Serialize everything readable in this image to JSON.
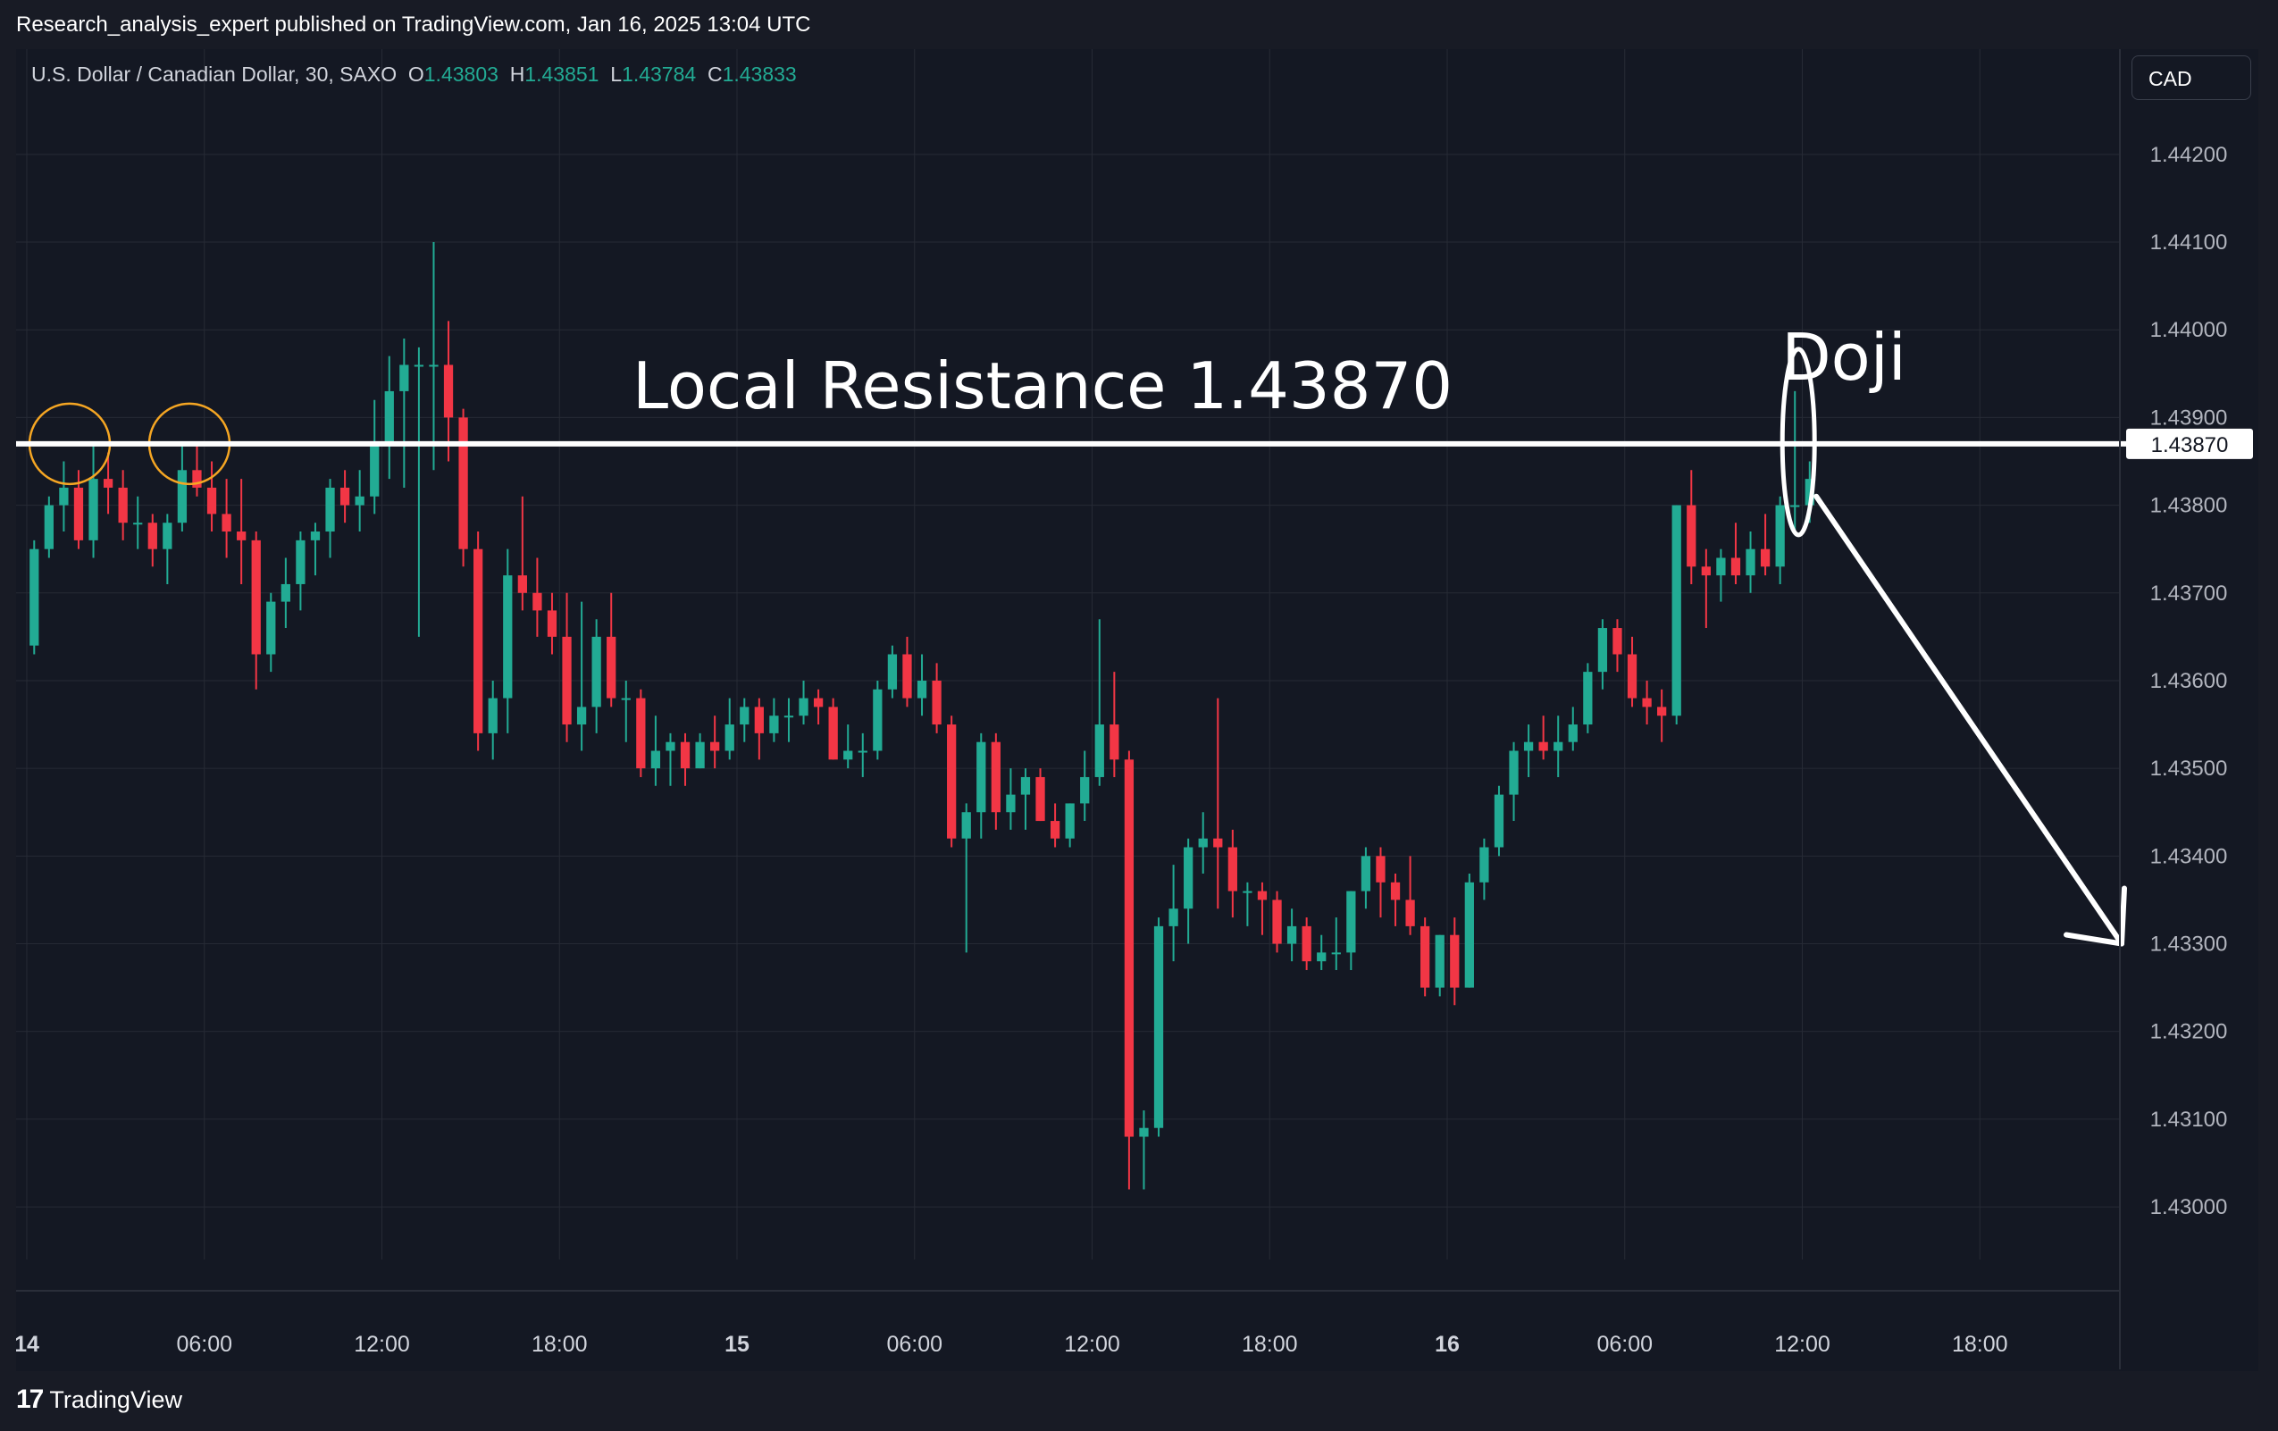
{
  "header": {
    "publish_text": "Research_analysis_expert published on TradingView.com, Jan 16, 2025 13:04 UTC"
  },
  "legend": {
    "symbol": "U.S. Dollar / Canadian Dollar, 30, SAXO",
    "o_label": "O",
    "o_value": "1.43803",
    "h_label": "H",
    "h_value": "1.43851",
    "l_label": "L",
    "l_value": "1.43784",
    "c_label": "C",
    "c_value": "1.43833"
  },
  "currency_button": "CAD",
  "footer": {
    "logo_mark": "17",
    "brand": "TradingView"
  },
  "colors": {
    "up": "#22ab94",
    "down": "#f23645",
    "background": "#141823",
    "grid": "#262a35",
    "annotation": "#ffffff",
    "marker": "#f5a623"
  },
  "chart_data": {
    "type": "candlestick",
    "interval_minutes": 30,
    "ylim": [
      1.4294,
      1.4432
    ],
    "y_ticks": [
      "1.44200",
      "1.44100",
      "1.44000",
      "1.43900",
      "1.43870",
      "1.43800",
      "1.43700",
      "1.43600",
      "1.43500",
      "1.43400",
      "1.43300",
      "1.43200",
      "1.43100",
      "1.43000"
    ],
    "price_marker": "1.43870",
    "x_axis_ticks": [
      {
        "label": "14",
        "bold": true,
        "day": 0,
        "hour": 0
      },
      {
        "label": "06:00",
        "bold": false,
        "day": 0,
        "hour": 6
      },
      {
        "label": "12:00",
        "bold": false,
        "day": 0,
        "hour": 12
      },
      {
        "label": "18:00",
        "bold": false,
        "day": 0,
        "hour": 18
      },
      {
        "label": "15",
        "bold": true,
        "day": 1,
        "hour": 0
      },
      {
        "label": "06:00",
        "bold": false,
        "day": 1,
        "hour": 6
      },
      {
        "label": "12:00",
        "bold": false,
        "day": 1,
        "hour": 12
      },
      {
        "label": "18:00",
        "bold": false,
        "day": 1,
        "hour": 18
      },
      {
        "label": "16",
        "bold": true,
        "day": 2,
        "hour": 0
      },
      {
        "label": "06:00",
        "bold": false,
        "day": 2,
        "hour": 6
      },
      {
        "label": "12:00",
        "bold": false,
        "day": 2,
        "hour": 12
      },
      {
        "label": "18:00",
        "bold": false,
        "day": 2,
        "hour": 18
      }
    ],
    "candles": [
      [
        1.4364,
        1.4376,
        1.4363,
        1.4375
      ],
      [
        1.4375,
        1.4381,
        1.4374,
        1.438
      ],
      [
        1.438,
        1.4385,
        1.4377,
        1.4382
      ],
      [
        1.4382,
        1.4384,
        1.4375,
        1.4376
      ],
      [
        1.4376,
        1.4387,
        1.4374,
        1.4383
      ],
      [
        1.4383,
        1.4386,
        1.4379,
        1.4382
      ],
      [
        1.4382,
        1.4384,
        1.4376,
        1.4378
      ],
      [
        1.4378,
        1.4381,
        1.4375,
        1.4378
      ],
      [
        1.4378,
        1.4379,
        1.4373,
        1.4375
      ],
      [
        1.4375,
        1.4379,
        1.4371,
        1.4378
      ],
      [
        1.4378,
        1.4387,
        1.4377,
        1.4384
      ],
      [
        1.4384,
        1.4387,
        1.4381,
        1.4382
      ],
      [
        1.4382,
        1.4385,
        1.4377,
        1.4379
      ],
      [
        1.4379,
        1.4383,
        1.4374,
        1.4377
      ],
      [
        1.4377,
        1.4383,
        1.4371,
        1.4376
      ],
      [
        1.4376,
        1.4377,
        1.4359,
        1.4363
      ],
      [
        1.4363,
        1.437,
        1.4361,
        1.4369
      ],
      [
        1.4369,
        1.4374,
        1.4366,
        1.4371
      ],
      [
        1.4371,
        1.4377,
        1.4368,
        1.4376
      ],
      [
        1.4376,
        1.4378,
        1.4372,
        1.4377
      ],
      [
        1.4377,
        1.4383,
        1.4374,
        1.4382
      ],
      [
        1.4382,
        1.4384,
        1.4378,
        1.438
      ],
      [
        1.438,
        1.4384,
        1.4377,
        1.4381
      ],
      [
        1.4381,
        1.4392,
        1.4379,
        1.4387
      ],
      [
        1.4387,
        1.4397,
        1.4383,
        1.4393
      ],
      [
        1.4393,
        1.4399,
        1.4382,
        1.4396
      ],
      [
        1.4396,
        1.4398,
        1.4365,
        1.4396
      ],
      [
        1.4396,
        1.441,
        1.4384,
        1.4396
      ],
      [
        1.4396,
        1.4401,
        1.4385,
        1.439
      ],
      [
        1.439,
        1.4391,
        1.4373,
        1.4375
      ],
      [
        1.4375,
        1.4377,
        1.4352,
        1.4354
      ],
      [
        1.4354,
        1.436,
        1.4351,
        1.4358
      ],
      [
        1.4358,
        1.4375,
        1.4354,
        1.4372
      ],
      [
        1.4372,
        1.4381,
        1.4368,
        1.437
      ],
      [
        1.437,
        1.4374,
        1.4365,
        1.4368
      ],
      [
        1.4368,
        1.437,
        1.4363,
        1.4365
      ],
      [
        1.4365,
        1.437,
        1.4353,
        1.4355
      ],
      [
        1.4355,
        1.4369,
        1.4352,
        1.4357
      ],
      [
        1.4357,
        1.4367,
        1.4354,
        1.4365
      ],
      [
        1.4365,
        1.437,
        1.4357,
        1.4358
      ],
      [
        1.4358,
        1.436,
        1.4353,
        1.4358
      ],
      [
        1.4358,
        1.4359,
        1.4349,
        1.435
      ],
      [
        1.435,
        1.4356,
        1.4348,
        1.4352
      ],
      [
        1.4352,
        1.4354,
        1.4348,
        1.4353
      ],
      [
        1.4353,
        1.4354,
        1.4348,
        1.435
      ],
      [
        1.435,
        1.4354,
        1.435,
        1.4353
      ],
      [
        1.4353,
        1.4356,
        1.435,
        1.4352
      ],
      [
        1.4352,
        1.4358,
        1.4351,
        1.4355
      ],
      [
        1.4355,
        1.4358,
        1.4353,
        1.4357
      ],
      [
        1.4357,
        1.4358,
        1.4351,
        1.4354
      ],
      [
        1.4354,
        1.4358,
        1.4353,
        1.4356
      ],
      [
        1.4356,
        1.4358,
        1.4353,
        1.4356
      ],
      [
        1.4356,
        1.436,
        1.4355,
        1.4358
      ],
      [
        1.4358,
        1.4359,
        1.4355,
        1.4357
      ],
      [
        1.4357,
        1.4358,
        1.4351,
        1.4351
      ],
      [
        1.4351,
        1.4355,
        1.435,
        1.4352
      ],
      [
        1.4352,
        1.4354,
        1.4349,
        1.4352
      ],
      [
        1.4352,
        1.436,
        1.4351,
        1.4359
      ],
      [
        1.4359,
        1.4364,
        1.4358,
        1.4363
      ],
      [
        1.4363,
        1.4365,
        1.4357,
        1.4358
      ],
      [
        1.4358,
        1.4363,
        1.4356,
        1.436
      ],
      [
        1.436,
        1.4362,
        1.4354,
        1.4355
      ],
      [
        1.4355,
        1.4356,
        1.4341,
        1.4342
      ],
      [
        1.4342,
        1.4346,
        1.4329,
        1.4345
      ],
      [
        1.4345,
        1.4354,
        1.4342,
        1.4353
      ],
      [
        1.4353,
        1.4354,
        1.4343,
        1.4345
      ],
      [
        1.4345,
        1.435,
        1.4343,
        1.4347
      ],
      [
        1.4347,
        1.435,
        1.4343,
        1.4349
      ],
      [
        1.4349,
        1.435,
        1.4344,
        1.4344
      ],
      [
        1.4344,
        1.4346,
        1.4341,
        1.4342
      ],
      [
        1.4342,
        1.4346,
        1.4341,
        1.4346
      ],
      [
        1.4346,
        1.4352,
        1.4344,
        1.4349
      ],
      [
        1.4349,
        1.4367,
        1.4348,
        1.4355
      ],
      [
        1.4355,
        1.4361,
        1.4349,
        1.4351
      ],
      [
        1.4351,
        1.4352,
        1.4302,
        1.4308
      ],
      [
        1.4308,
        1.4311,
        1.4302,
        1.4309
      ],
      [
        1.4309,
        1.4333,
        1.4308,
        1.4332
      ],
      [
        1.4332,
        1.4339,
        1.4328,
        1.4334
      ],
      [
        1.4334,
        1.4342,
        1.433,
        1.4341
      ],
      [
        1.4341,
        1.4345,
        1.4338,
        1.4342
      ],
      [
        1.4342,
        1.4358,
        1.4334,
        1.4341
      ],
      [
        1.4341,
        1.4343,
        1.4333,
        1.4336
      ],
      [
        1.4336,
        1.4337,
        1.4332,
        1.4336
      ],
      [
        1.4336,
        1.4337,
        1.4331,
        1.4335
      ],
      [
        1.4335,
        1.4336,
        1.4329,
        1.433
      ],
      [
        1.433,
        1.4334,
        1.4328,
        1.4332
      ],
      [
        1.4332,
        1.4333,
        1.4327,
        1.4328
      ],
      [
        1.4328,
        1.4331,
        1.4327,
        1.4329
      ],
      [
        1.4329,
        1.4333,
        1.4327,
        1.4329
      ],
      [
        1.4329,
        1.4336,
        1.4327,
        1.4336
      ],
      [
        1.4336,
        1.4341,
        1.4334,
        1.434
      ],
      [
        1.434,
        1.4341,
        1.4333,
        1.4337
      ],
      [
        1.4337,
        1.4338,
        1.4332,
        1.4335
      ],
      [
        1.4335,
        1.434,
        1.4331,
        1.4332
      ],
      [
        1.4332,
        1.4333,
        1.4324,
        1.4325
      ],
      [
        1.4325,
        1.4331,
        1.4324,
        1.4331
      ],
      [
        1.4331,
        1.4333,
        1.4323,
        1.4325
      ],
      [
        1.4325,
        1.4338,
        1.4325,
        1.4337
      ],
      [
        1.4337,
        1.4342,
        1.4335,
        1.4341
      ],
      [
        1.4341,
        1.4348,
        1.434,
        1.4347
      ],
      [
        1.4347,
        1.4353,
        1.4344,
        1.4352
      ],
      [
        1.4352,
        1.4355,
        1.4349,
        1.4353
      ],
      [
        1.4353,
        1.4356,
        1.4351,
        1.4352
      ],
      [
        1.4352,
        1.4356,
        1.4349,
        1.4353
      ],
      [
        1.4353,
        1.4357,
        1.4352,
        1.4355
      ],
      [
        1.4355,
        1.4362,
        1.4354,
        1.4361
      ],
      [
        1.4361,
        1.4367,
        1.4359,
        1.4366
      ],
      [
        1.4366,
        1.4367,
        1.4361,
        1.4363
      ],
      [
        1.4363,
        1.4365,
        1.4357,
        1.4358
      ],
      [
        1.4358,
        1.436,
        1.4355,
        1.4357
      ],
      [
        1.4357,
        1.4359,
        1.4353,
        1.4356
      ],
      [
        1.4356,
        1.438,
        1.4355,
        1.438
      ],
      [
        1.438,
        1.4384,
        1.4371,
        1.4373
      ],
      [
        1.4373,
        1.4375,
        1.4366,
        1.4372
      ],
      [
        1.4372,
        1.4375,
        1.4369,
        1.4374
      ],
      [
        1.4374,
        1.4378,
        1.4371,
        1.4372
      ],
      [
        1.4372,
        1.4377,
        1.437,
        1.4375
      ],
      [
        1.4375,
        1.4379,
        1.4372,
        1.4373
      ],
      [
        1.4373,
        1.4381,
        1.4371,
        1.438
      ],
      [
        1.438,
        1.4393,
        1.4377,
        1.438
      ],
      [
        1.438,
        1.4385,
        1.4378,
        1.4383
      ]
    ]
  },
  "annotations": {
    "resistance_label": "Local Resistance 1.43870",
    "resistance_level": 1.4387,
    "doji_label": "Doji"
  }
}
